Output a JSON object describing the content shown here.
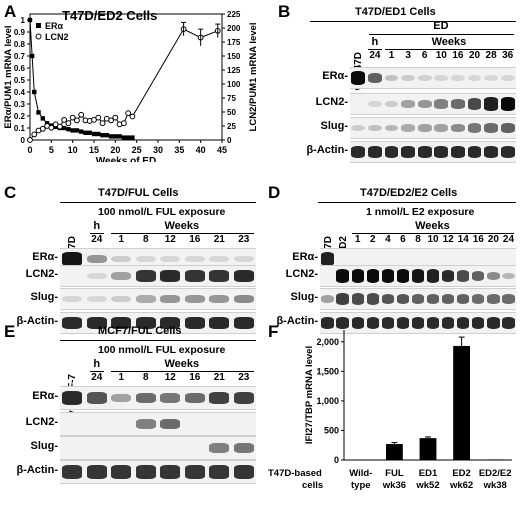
{
  "panel_a": {
    "letter": "A",
    "title": "T47D/ED2 Cells",
    "legend": [
      "ERα",
      "LCN2"
    ],
    "ylabel_left": "ERα/PUM1 mRNA level",
    "ylabel_right": "LCN2/PUM1 mRNA level",
    "xlabel": "Weeks of ED",
    "x_ticks": [
      "0",
      "5",
      "10",
      "15",
      "20",
      "25",
      "30",
      "35",
      "40",
      "45"
    ],
    "y_left_ticks": [
      "0",
      "0.1",
      "0.2",
      "0.3",
      "0.4",
      "0.5",
      "0.6",
      "0.7",
      "0.8",
      "0.9",
      "1"
    ],
    "y_right_ticks": [
      "0",
      "25",
      "50",
      "75",
      "100",
      "125",
      "150",
      "175",
      "200",
      "225"
    ]
  },
  "chart_data": [
    {
      "type": "line",
      "xlabel": "Weeks of ED",
      "ylabel": "ERα/PUM1 mRNA level",
      "y2label": "LCN2/PUM1 mRNA level",
      "xlim": [
        0,
        45
      ],
      "ylim": [
        0,
        1.05
      ],
      "y2lim": [
        0,
        225
      ],
      "series": [
        {
          "name": "ERα",
          "axis": "left",
          "marker": "filled-square",
          "x": [
            0,
            0.5,
            1,
            2,
            3,
            4,
            5,
            6,
            7,
            8,
            9,
            10,
            11,
            12,
            13,
            14,
            15,
            16,
            17,
            18,
            19,
            20,
            21,
            22,
            23,
            24
          ],
          "values": [
            1,
            0.7,
            0.4,
            0.23,
            0.18,
            0.14,
            0.12,
            0.11,
            0.1,
            0.1,
            0.09,
            0.08,
            0.08,
            0.07,
            0.06,
            0.06,
            0.05,
            0.05,
            0.04,
            0.04,
            0.03,
            0.03,
            0.03,
            0.02,
            0.02,
            0.02
          ]
        },
        {
          "name": "LCN2",
          "axis": "right",
          "marker": "open-circle",
          "x": [
            0,
            1,
            2,
            3,
            4,
            5,
            6,
            7,
            8,
            9,
            10,
            11,
            12,
            13,
            14,
            15,
            16,
            17,
            18,
            19,
            20,
            21,
            22,
            23,
            24,
            36,
            40,
            44
          ],
          "values": [
            0,
            10,
            17,
            20,
            25,
            22,
            28,
            24,
            36,
            30,
            40,
            35,
            45,
            35,
            34,
            36,
            40,
            30,
            38,
            35,
            40,
            28,
            30,
            48,
            42,
            198,
            183,
            195
          ]
        }
      ]
    },
    {
      "type": "bar",
      "ylabel": "IFI27/TBP mRNA level",
      "xlabel": "T47D-based cells",
      "categories": [
        "Wild-type",
        "FUL wk36",
        "ED1 wk52",
        "ED2 wk62",
        "ED2/E2 wk38"
      ],
      "values": [
        5,
        270,
        370,
        1930,
        10
      ],
      "errors": [
        0,
        25,
        20,
        150,
        0
      ],
      "ylim": [
        0,
        2200
      ]
    }
  ],
  "panel_b": {
    "letter": "B",
    "title": "T47D/ED1 Cells",
    "group": "ED",
    "unit": "h",
    "weeks_label": "Weeks",
    "lanes": [
      "wt T47D",
      "24",
      "1",
      "3",
      "6",
      "10",
      "16",
      "20",
      "28",
      "36"
    ],
    "rows": [
      "ERα-",
      "LCN2-",
      "Slug-",
      "β-Actin-"
    ]
  },
  "panel_c": {
    "letter": "C",
    "title": "T47D/FUL Cells",
    "exposure": "100 nmol/L FUL exposure",
    "unit": "h",
    "weeks_label": "Weeks",
    "lanes": [
      "wt T47D",
      "24",
      "1",
      "8",
      "12",
      "16",
      "21",
      "23"
    ],
    "rows": [
      "ERα-",
      "LCN2-",
      "Slug-",
      "β-Actin-"
    ]
  },
  "panel_d": {
    "letter": "D",
    "title": "T47D/ED2/E2 Cells",
    "exposure": "1 nmol/L E2 exposure",
    "weeks_label": "Weeks",
    "lanes": [
      "wt T47D",
      "T47D/ED2",
      "1",
      "2",
      "4",
      "6",
      "8",
      "10",
      "12",
      "14",
      "16",
      "20",
      "24"
    ],
    "rows": [
      "ERα-",
      "LCN2-",
      "Slug-",
      "β-Actin-"
    ]
  },
  "panel_e": {
    "letter": "E",
    "title": "MCF7/FUL Cells",
    "exposure": "100 nmol/L FUL exposure",
    "unit": "h",
    "weeks_label": "Weeks",
    "lanes": [
      "wt MCF-7",
      "24",
      "1",
      "8",
      "12",
      "16",
      "21",
      "23"
    ],
    "rows": [
      "ERα-",
      "LCN2-",
      "Slug-",
      "β-Actin-"
    ]
  },
  "panel_f": {
    "letter": "F",
    "ylabel": "IFI27/TBP mRNA level",
    "y_ticks": [
      "0",
      "500",
      "1,000",
      "1,500",
      "2,000"
    ],
    "row_label": "T47D-based cells",
    "categories": [
      {
        "line1": "Wild-",
        "line2": "type"
      },
      {
        "line1": "FUL",
        "line2": "wk36"
      },
      {
        "line1": "ED1",
        "line2": "wk52"
      },
      {
        "line1": "ED2",
        "line2": "wk62"
      },
      {
        "line1": "ED2/E2",
        "line2": "wk38"
      }
    ]
  }
}
